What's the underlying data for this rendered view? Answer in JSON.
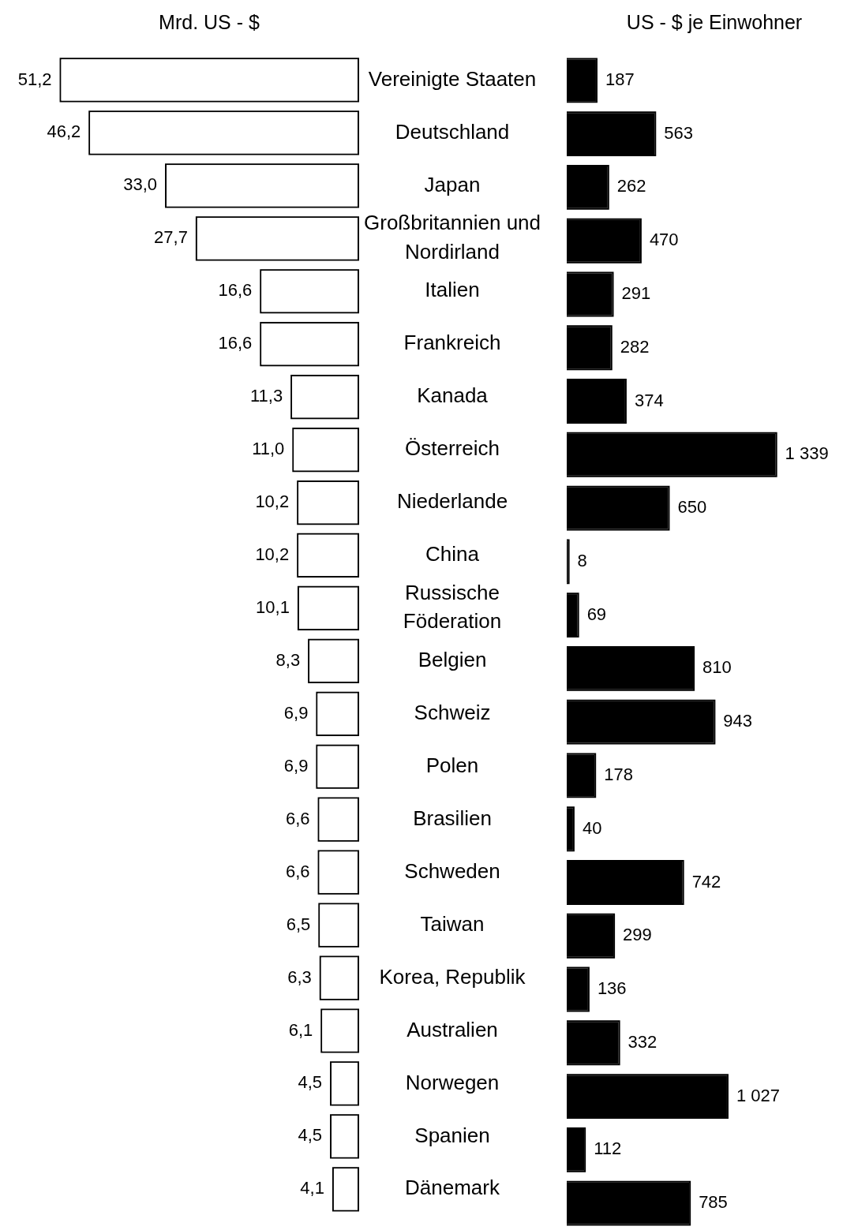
{
  "chart_data": [
    {
      "type": "bar",
      "orientation": "horizontal",
      "title": "Mrd. US - $",
      "color": "#ffffff",
      "categories": [
        "Vereinigte Staaten",
        "Deutschland",
        "Japan",
        "Großbritannien und Nordirland",
        "Italien",
        "Frankreich",
        "Kanada",
        "Österreich",
        "Niederlande",
        "China",
        "Russische Föderation",
        "Belgien",
        "Schweiz",
        "Polen",
        "Brasilien",
        "Schweden",
        "Taiwan",
        "Korea, Republik",
        "Australien",
        "Norwegen",
        "Spanien",
        "Dänemark"
      ],
      "values": [
        51.2,
        46.2,
        33.0,
        27.7,
        16.6,
        16.6,
        11.3,
        11.0,
        10.2,
        10.2,
        10.1,
        8.3,
        6.9,
        6.9,
        6.6,
        6.6,
        6.5,
        6.3,
        6.1,
        4.5,
        4.5,
        4.1
      ],
      "value_labels": [
        "51,2",
        "46,2",
        "33,0",
        "27,7",
        "16,6",
        "16,6",
        "11,3",
        "11,0",
        "10,2",
        "10,2",
        "10,1",
        "8,3",
        "6,9",
        "6,9",
        "6,6",
        "6,6",
        "6,5",
        "6,3",
        "6,1",
        "4,5",
        "4,5",
        "4,1"
      ]
    },
    {
      "type": "bar",
      "orientation": "horizontal",
      "title": "US - $ je Einwohner",
      "color": "#000000",
      "categories": [
        null,
        null,
        null,
        null,
        null,
        null,
        null,
        null,
        null,
        null,
        null,
        null,
        null,
        null,
        null,
        null,
        null,
        null,
        null,
        null,
        null,
        null
      ],
      "values": [
        187,
        563,
        262,
        470,
        291,
        282,
        374,
        1339,
        650,
        8,
        69,
        810,
        943,
        178,
        40,
        742,
        299,
        136,
        332,
        1027,
        112,
        785
      ],
      "value_labels": [
        "187",
        "563",
        "262",
        "470",
        "291",
        "282",
        "374",
        "1 339",
        "650",
        "8",
        "69",
        "810",
        "943",
        "178",
        "40",
        "742",
        "299",
        "136",
        "332",
        "1 027",
        "112",
        "785"
      ]
    }
  ]
}
